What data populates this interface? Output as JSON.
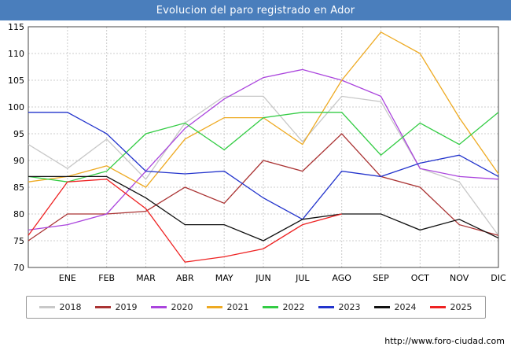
{
  "header": {
    "title": "Evolucion del paro registrado en Ador",
    "bg_color": "#4a7ebc",
    "text_color": "#ffffff"
  },
  "footer": {
    "url": "http://www.foro-ciudad.com"
  },
  "chart_data": {
    "type": "line",
    "title": "Evolucion del paro registrado en Ador",
    "xlabel": "",
    "ylabel": "",
    "ylim": [
      70,
      115
    ],
    "ytick_step": 5,
    "grid": true,
    "grid_color": "#cccccc",
    "axis_color": "#444444",
    "legend_position": "bottom",
    "categories": [
      "",
      "ENE",
      "FEB",
      "MAR",
      "ABR",
      "MAY",
      "JUN",
      "JUL",
      "AGO",
      "SEP",
      "OCT",
      "NOV",
      "DIC"
    ],
    "series": [
      {
        "name": "2018",
        "color": "#c8c8c8",
        "values": [
          93,
          88.5,
          94,
          86.5,
          97,
          102,
          102,
          93.5,
          102,
          101,
          88.5,
          86,
          76
        ]
      },
      {
        "name": "2019",
        "color": "#aa3333",
        "values": [
          75,
          80,
          80,
          80.5,
          85,
          82,
          90,
          88,
          95,
          87,
          85,
          78,
          76
        ]
      },
      {
        "name": "2020",
        "color": "#aa44dd",
        "values": [
          77,
          78,
          80,
          88,
          96,
          101.5,
          105.5,
          107,
          105,
          102,
          88.5,
          87,
          86.5
        ]
      },
      {
        "name": "2021",
        "color": "#eeaa22",
        "values": [
          86,
          87,
          89,
          85,
          94,
          98,
          98,
          93,
          105,
          114,
          110,
          98,
          87.5
        ]
      },
      {
        "name": "2022",
        "color": "#33cc44",
        "values": [
          87,
          86,
          88,
          95,
          97,
          92,
          98,
          99,
          99,
          91,
          97,
          93,
          99
        ]
      },
      {
        "name": "2023",
        "color": "#2233cc",
        "values": [
          99,
          99,
          95,
          88,
          87.5,
          88,
          83,
          79,
          88,
          87,
          89.5,
          91,
          87
        ]
      },
      {
        "name": "2024",
        "color": "#111111",
        "values": [
          87,
          87,
          87,
          83,
          78,
          78,
          75,
          79,
          80,
          80,
          77,
          79,
          75.5
        ]
      },
      {
        "name": "2025",
        "color": "#ee2222",
        "values": [
          76,
          86,
          86.5,
          81,
          71,
          72,
          73.5,
          78,
          80,
          null,
          null,
          null,
          null
        ]
      }
    ]
  }
}
